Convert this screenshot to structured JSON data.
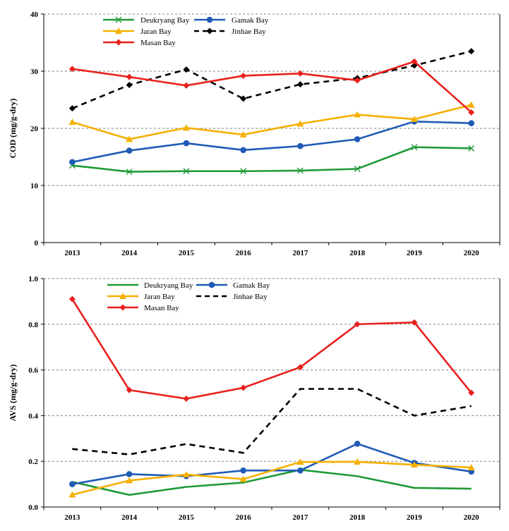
{
  "chart_data": [
    {
      "type": "line",
      "title": "",
      "xlabel": "",
      "ylabel": "COD (mg/g-dry)",
      "ylim": [
        0,
        40
      ],
      "yticks": [
        0,
        10,
        20,
        30,
        40
      ],
      "ytick_labels": [
        "0",
        "10",
        "20",
        "30",
        "40"
      ],
      "categories": [
        "2013",
        "2014",
        "2015",
        "2016",
        "2017",
        "2018",
        "2019",
        "2020"
      ],
      "grid": "horizontal-dashed",
      "legend": "top-left",
      "series": [
        {
          "name": "Deukryang Bay",
          "color": "#1f9a37",
          "marker": "x",
          "dash": "solid",
          "values": [
            13.5,
            12.4,
            12.5,
            12.5,
            12.6,
            12.9,
            16.7,
            16.5
          ]
        },
        {
          "name": "Gamak Bay",
          "color": "#1f5bb5",
          "marker": "circle",
          "dash": "solid",
          "values": [
            14.1,
            16.1,
            17.4,
            16.2,
            16.9,
            18.1,
            21.2,
            20.9
          ]
        },
        {
          "name": "Jaran Bay",
          "color": "#f5b000",
          "marker": "triangle",
          "dash": "solid",
          "values": [
            21.1,
            18.1,
            20.1,
            18.9,
            20.8,
            22.4,
            21.6,
            24.1
          ]
        },
        {
          "name": "Jinhae Bay",
          "color": "#000000",
          "marker": "diamond",
          "dash": "dashed",
          "values": [
            23.5,
            27.6,
            30.3,
            25.2,
            27.7,
            28.8,
            31.0,
            33.5
          ]
        },
        {
          "name": "Masan Bay",
          "color": "#e8211d",
          "marker": "diamond",
          "dash": "solid",
          "values": [
            30.4,
            29.0,
            27.5,
            29.2,
            29.6,
            28.4,
            31.7,
            22.8
          ]
        }
      ]
    },
    {
      "type": "line",
      "title": "",
      "xlabel": "",
      "ylabel": "AVS (mg/g-dry)",
      "ylim": [
        0,
        1.0
      ],
      "yticks": [
        0,
        0.2,
        0.4,
        0.6,
        0.8,
        1.0
      ],
      "ytick_labels": [
        "0.0",
        "0.2",
        "0.4",
        "0.6",
        "0.8",
        "1.0"
      ],
      "categories": [
        "2013",
        "2014",
        "2015",
        "2016",
        "2017",
        "2018",
        "2019",
        "2020"
      ],
      "grid": "horizontal-dashed",
      "legend": "top-left",
      "series": [
        {
          "name": "Deukryang Bay",
          "color": "#1f9a37",
          "marker": "none",
          "dash": "solid",
          "values": [
            0.11,
            0.053,
            0.088,
            0.107,
            0.163,
            0.135,
            0.084,
            0.08
          ]
        },
        {
          "name": "Gamak Bay",
          "color": "#1f5bb5",
          "marker": "circle",
          "dash": "solid",
          "values": [
            0.1,
            0.144,
            0.135,
            0.16,
            0.16,
            0.277,
            0.193,
            0.155
          ]
        },
        {
          "name": "Jaran Bay",
          "color": "#f5b000",
          "marker": "triangle",
          "dash": "solid",
          "values": [
            0.054,
            0.116,
            0.142,
            0.122,
            0.197,
            0.198,
            0.185,
            0.173
          ]
        },
        {
          "name": "Jinhae Bay",
          "color": "#000000",
          "marker": "none",
          "dash": "dashed",
          "values": [
            0.254,
            0.23,
            0.276,
            0.237,
            0.517,
            0.517,
            0.4,
            0.442
          ]
        },
        {
          "name": "Masan Bay",
          "color": "#e8211d",
          "marker": "diamond",
          "dash": "solid",
          "values": [
            0.91,
            0.512,
            0.474,
            0.522,
            0.612,
            0.8,
            0.808,
            0.5
          ]
        }
      ]
    }
  ]
}
